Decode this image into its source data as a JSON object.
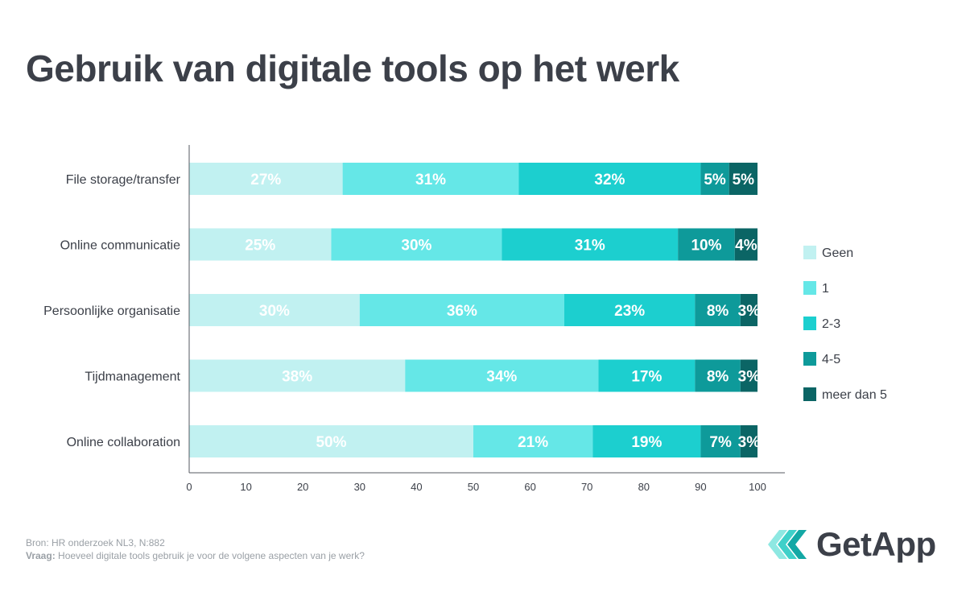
{
  "title": "Gebruik van digitale tools op het werk",
  "source": "Bron: HR onderzoek NL3, N:882",
  "question_label": "Vraag:",
  "question_text": "Hoeveel digitale tools gebruik je voor de volgene aspecten van je werk?",
  "logo_text": "GetApp",
  "chart_data": {
    "type": "bar",
    "orientation": "horizontal",
    "stacked": true,
    "categories": [
      "File storage/transfer",
      "Online communicatie",
      "Persoonlijke organisatie",
      "Tijdmanagement",
      "Online collaboration"
    ],
    "series": [
      {
        "name": "Geen",
        "color": "#c1f1f1",
        "values": [
          27,
          25,
          30,
          38,
          50
        ],
        "labels": [
          "27%",
          "25%",
          "30%",
          "38%",
          "50%"
        ]
      },
      {
        "name": "1",
        "color": "#65e7e7",
        "values": [
          31,
          30,
          36,
          34,
          21
        ],
        "labels": [
          "31%",
          "30%",
          "36%",
          "34%",
          "21%"
        ]
      },
      {
        "name": "2-3",
        "color": "#1ccfcf",
        "values": [
          32,
          31,
          23,
          17,
          19
        ],
        "labels": [
          "32%",
          "31%",
          "23%",
          "17%",
          "19%"
        ]
      },
      {
        "name": "4-5",
        "color": "#0e9a9a",
        "values": [
          5,
          10,
          8,
          8,
          7
        ],
        "labels": [
          "5%",
          "10%",
          "8%",
          "8%",
          "7%"
        ]
      },
      {
        "name": "meer dan 5",
        "color": "#0b6565",
        "values": [
          5,
          4,
          3,
          3,
          3
        ],
        "labels": [
          "5%",
          "4%",
          "3%",
          "3%",
          "3%"
        ]
      }
    ],
    "xlim": [
      0,
      100
    ],
    "xticks": [
      "0",
      "10",
      "20",
      "30",
      "40",
      "50",
      "60",
      "70",
      "80",
      "90",
      "100"
    ],
    "legend_position": "right"
  }
}
